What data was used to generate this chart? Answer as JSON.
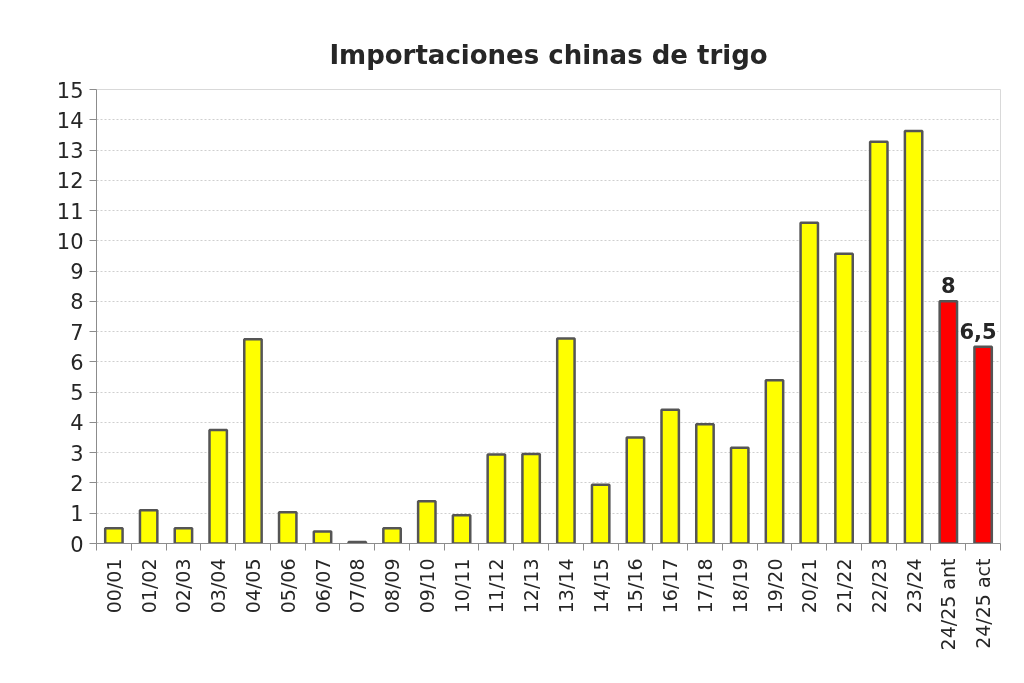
{
  "chart_data": {
    "type": "bar",
    "title": "Importaciones chinas de trigo",
    "categories": [
      "00/01",
      "01/02",
      "02/03",
      "03/04",
      "04/05",
      "05/06",
      "06/07",
      "07/08",
      "08/09",
      "09/10",
      "10/11",
      "11/12",
      "12/13",
      "13/14",
      "14/15",
      "15/16",
      "16/17",
      "17/18",
      "18/19",
      "19/20",
      "20/21",
      "21/22",
      "22/23",
      "23/24",
      "24/25 ant",
      "24/25 act"
    ],
    "values": [
      0.5,
      1.1,
      0.5,
      3.75,
      6.75,
      1.03,
      0.4,
      0.05,
      0.5,
      1.4,
      0.93,
      2.94,
      2.96,
      6.77,
      1.94,
      3.5,
      4.42,
      3.94,
      3.16,
      5.39,
      10.6,
      9.57,
      13.27,
      13.63,
      8,
      6.5
    ],
    "colors": [
      "#ffff00",
      "#ffff00",
      "#ffff00",
      "#ffff00",
      "#ffff00",
      "#ffff00",
      "#ffff00",
      "#ffff00",
      "#ffff00",
      "#ffff00",
      "#ffff00",
      "#ffff00",
      "#ffff00",
      "#ffff00",
      "#ffff00",
      "#ffff00",
      "#ffff00",
      "#ffff00",
      "#ffff00",
      "#ffff00",
      "#ffff00",
      "#ffff00",
      "#ffff00",
      "#ffff00",
      "#ff0000",
      "#ff0000"
    ],
    "value_labels": [
      null,
      null,
      null,
      null,
      null,
      null,
      null,
      null,
      null,
      null,
      null,
      null,
      null,
      null,
      null,
      null,
      null,
      null,
      null,
      null,
      null,
      null,
      null,
      null,
      "8",
      "6,5"
    ],
    "ylim": [
      0,
      15
    ],
    "yticks": [
      0,
      1,
      2,
      3,
      4,
      5,
      6,
      7,
      8,
      9,
      10,
      11,
      12,
      13,
      14,
      15
    ],
    "grid": "y"
  }
}
